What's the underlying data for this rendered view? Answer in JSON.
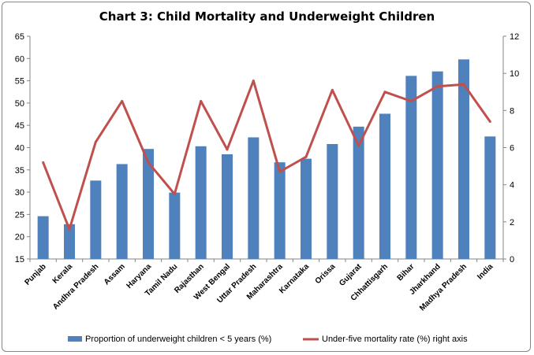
{
  "chart_data": {
    "type": "bar+line",
    "title": "Chart 3: Child Mortality and Underweight Children",
    "categories": [
      "Punjab",
      "Kerala",
      "Andhra Pradesh",
      "Assam",
      "Haryana",
      "Tamil Nadu",
      "Rajasthan",
      "West Bengal",
      "Uttar Pradesh",
      "Maharashtra",
      "Karnataka",
      "Orissa",
      "Gujarat",
      "Chhattisgarh",
      "Bihar",
      "Jharkhand",
      "Madhya Pradesh",
      "India"
    ],
    "series": [
      {
        "name": "Proportion  of underweight children < 5 years (%)",
        "type": "bar",
        "axis": "left",
        "color": "#4F81BD",
        "values": [
          24.6,
          22.8,
          32.6,
          36.3,
          39.7,
          29.9,
          40.3,
          38.5,
          42.3,
          36.7,
          37.5,
          40.8,
          44.7,
          47.6,
          56.1,
          57.1,
          59.8,
          42.5
        ]
      },
      {
        "name": "Under-five mortality rate (%) right axis",
        "type": "line",
        "axis": "right",
        "color": "#C0504D",
        "values": [
          5.2,
          1.6,
          6.3,
          8.5,
          5.2,
          3.5,
          8.5,
          5.9,
          9.6,
          4.7,
          5.5,
          9.1,
          6.1,
          9.0,
          8.5,
          9.3,
          9.4,
          7.4
        ]
      }
    ],
    "y_left": {
      "min": 15,
      "max": 65,
      "step": 5,
      "ticks": [
        "15",
        "20",
        "25",
        "30",
        "35",
        "40",
        "45",
        "50",
        "55",
        "60",
        "65"
      ]
    },
    "y_right": {
      "min": 0,
      "max": 12,
      "step": 2,
      "ticks": [
        "0",
        "2",
        "4",
        "6",
        "8",
        "10",
        "12"
      ]
    },
    "grid": false,
    "legend_position": "bottom"
  }
}
